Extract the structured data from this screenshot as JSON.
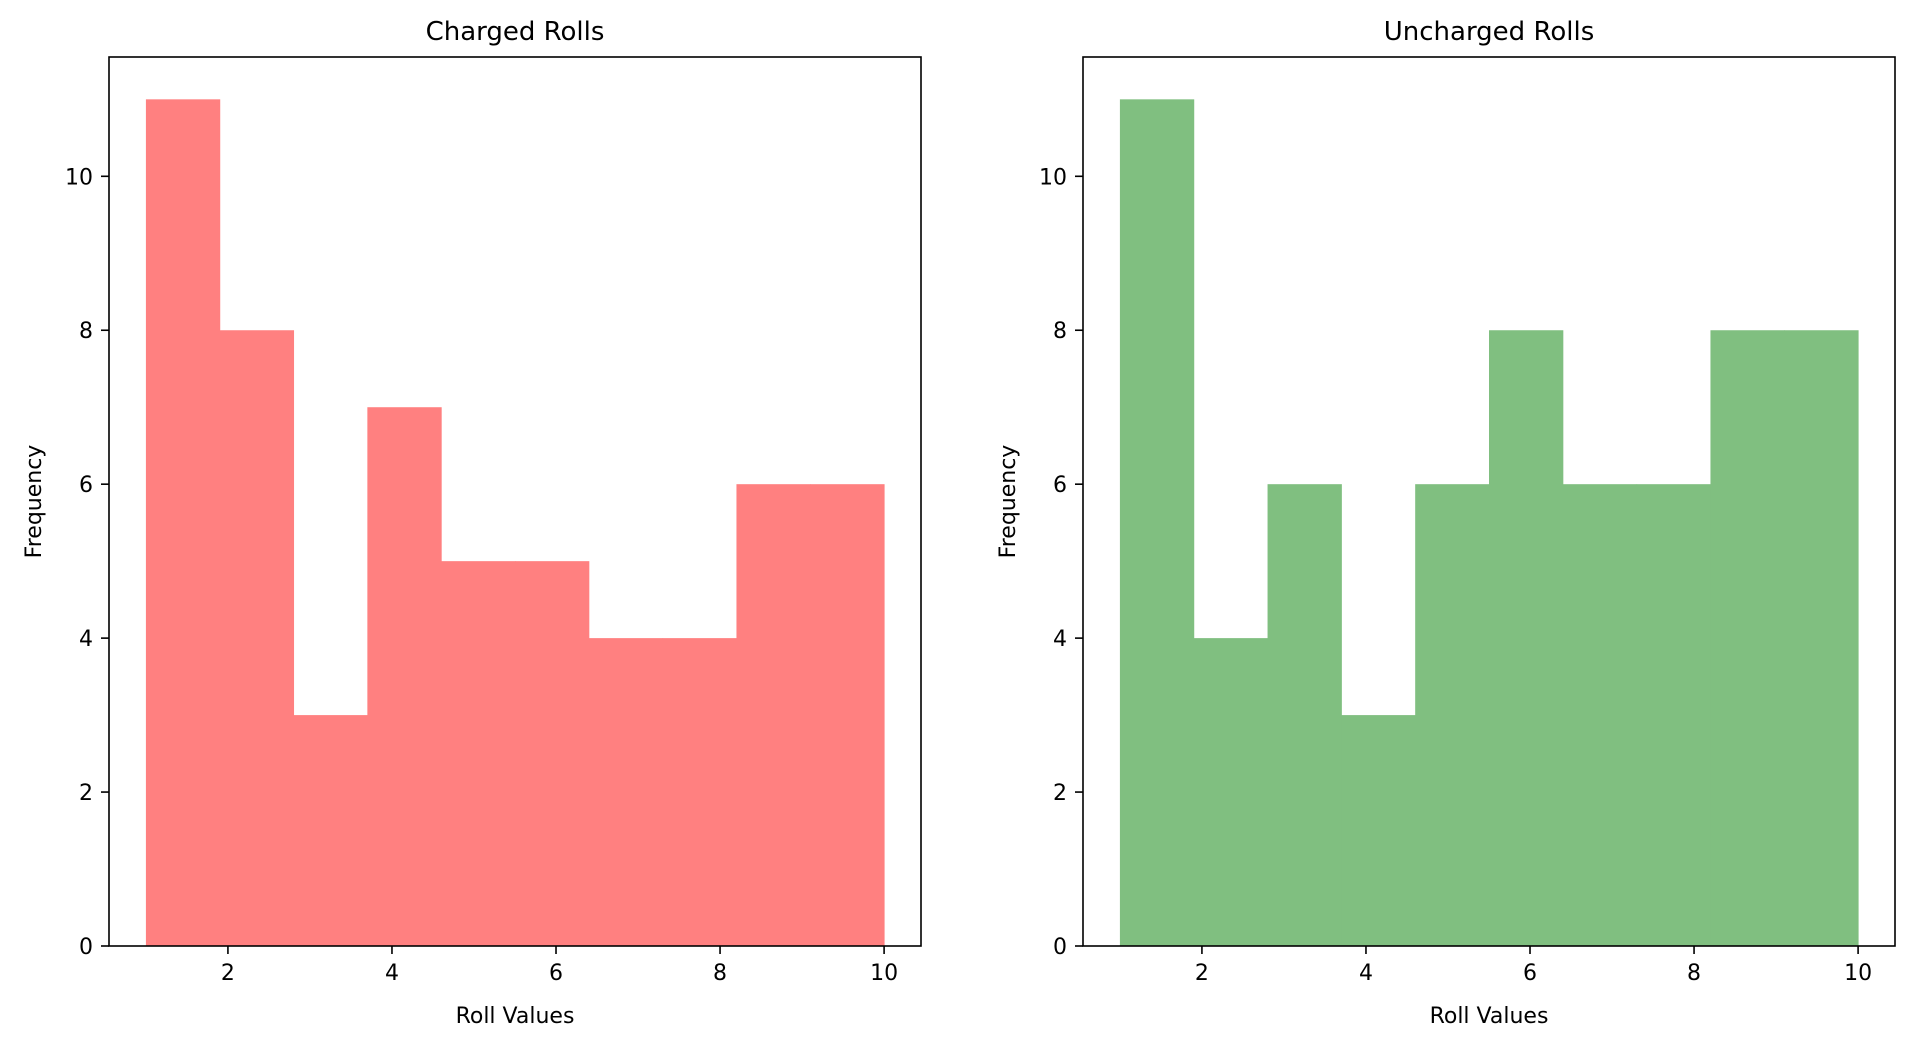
{
  "chart_data": [
    {
      "type": "histogram",
      "title": "Charged Rolls",
      "xlabel": "Roll Values",
      "ylabel": "Frequency",
      "xlim": [
        0.55,
        10.45
      ],
      "ylim": [
        0,
        11.55
      ],
      "xticks": [
        2,
        4,
        6,
        8,
        10
      ],
      "yticks": [
        0,
        2,
        4,
        6,
        8,
        10
      ],
      "bin_edges": [
        1.0,
        1.9,
        2.8,
        3.7,
        4.6,
        5.5,
        6.4,
        7.3,
        8.2,
        9.1,
        10.0
      ],
      "counts": [
        11,
        8,
        3,
        7,
        5,
        5,
        4,
        4,
        6,
        6
      ],
      "color": "#ff8080",
      "grid": false,
      "legend": false
    },
    {
      "type": "histogram",
      "title": "Uncharged Rolls",
      "xlabel": "Roll Values",
      "ylabel": "Frequency",
      "xlim": [
        0.55,
        10.45
      ],
      "ylim": [
        0,
        11.55
      ],
      "xticks": [
        2,
        4,
        6,
        8,
        10
      ],
      "yticks": [
        0,
        2,
        4,
        6,
        8,
        10
      ],
      "bin_edges": [
        1.0,
        1.9,
        2.8,
        3.7,
        4.6,
        5.5,
        6.4,
        7.3,
        8.2,
        9.1,
        10.0
      ],
      "counts": [
        11,
        4,
        6,
        3,
        6,
        8,
        6,
        6,
        8,
        8
      ],
      "color": "#80bf80",
      "grid": false,
      "legend": false
    }
  ]
}
